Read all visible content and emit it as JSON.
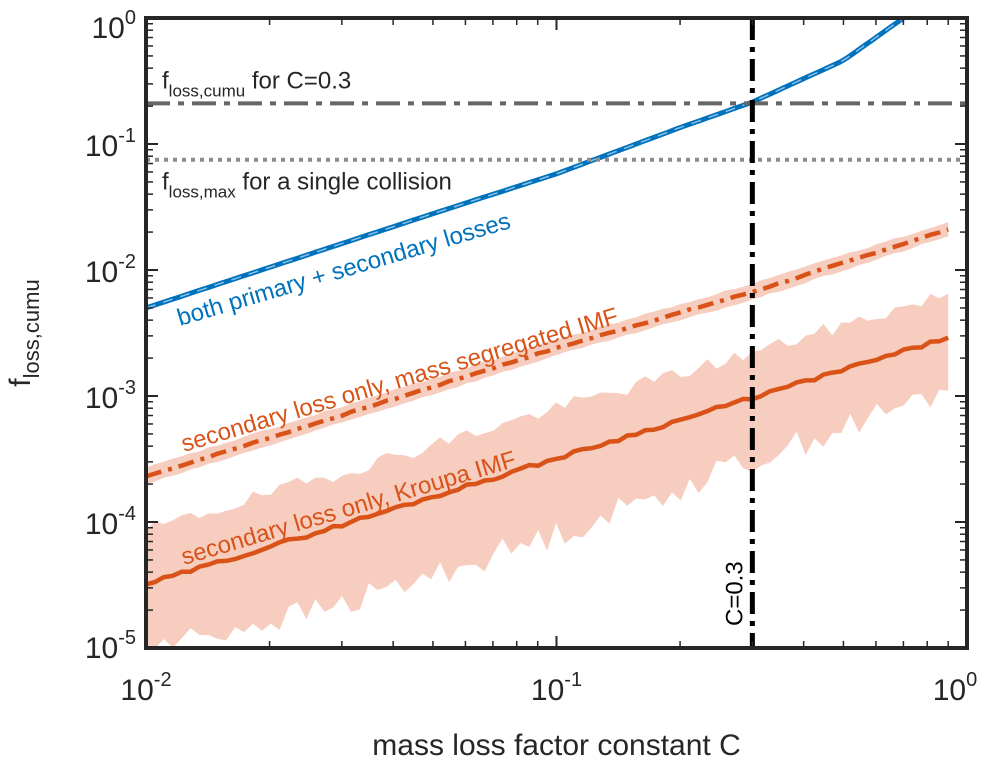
{
  "chart_data": {
    "type": "line",
    "xlabel": "mass loss factor constant C",
    "ylabel": {
      "base": "f",
      "sub": "loss,cumu"
    },
    "xscale": "log",
    "yscale": "log",
    "xlim": [
      0.01,
      1
    ],
    "ylim": [
      1e-05,
      1
    ],
    "x_ticks": [
      {
        "base": "10",
        "exp": "-2"
      },
      {
        "base": "10",
        "exp": "-1"
      },
      {
        "base": "10",
        "exp": "0"
      }
    ],
    "y_ticks": [
      {
        "base": "10",
        "exp": "-5"
      },
      {
        "base": "10",
        "exp": "-4"
      },
      {
        "base": "10",
        "exp": "-3"
      },
      {
        "base": "10",
        "exp": "-2"
      },
      {
        "base": "10",
        "exp": "-1"
      },
      {
        "base": "10",
        "exp": "0"
      }
    ],
    "grid": false,
    "colors": {
      "blue": "#0072BD",
      "orange": "#D95319",
      "band": "#F4C4B3",
      "dark_gray": "#666666",
      "light_gray": "#8C8C8C",
      "black": "#000000"
    },
    "series": [
      {
        "key": "blue",
        "label": "both primary + secondary losses",
        "style": "solid+dashed",
        "x": [
          0.01,
          0.02,
          0.05,
          0.1,
          0.2,
          0.3,
          0.5,
          0.7
        ],
        "y": [
          0.005,
          0.0105,
          0.028,
          0.058,
          0.135,
          0.215,
          0.46,
          1.0
        ]
      },
      {
        "key": "orange_segregated",
        "label": "secondary loss only, mass segregated IMF",
        "style": "dash-dot",
        "x": [
          0.01,
          0.1,
          0.3,
          0.9
        ],
        "y": [
          0.00023,
          0.0024,
          0.0067,
          0.021
        ],
        "band_upper": [
          0.00027,
          0.0028,
          0.0078,
          0.024
        ],
        "band_lower": [
          0.0002,
          0.0021,
          0.0058,
          0.0185
        ]
      },
      {
        "key": "orange_kroupa",
        "label": "secondary loss only, Kroupa IMF",
        "style": "solid",
        "x": [
          0.01,
          0.03,
          0.1,
          0.3,
          0.9
        ],
        "y": [
          3.2e-05,
          9.5e-05,
          0.00032,
          0.00097,
          0.0029
        ],
        "band_upper": [
          8.5e-05,
          0.00025,
          0.0008,
          0.0022,
          0.0065
        ],
        "band_lower": [
          1e-05,
          2.2e-05,
          8e-05,
          0.00031,
          0.0011
        ]
      }
    ],
    "hlines": [
      {
        "y": 0.21,
        "style": "dash-dot",
        "color": "dark_gray",
        "label": {
          "base": "f",
          "sub": "loss,cumu",
          "rest": " for C=0.3"
        }
      },
      {
        "y": 0.075,
        "style": "dotted",
        "color": "light_gray",
        "label": {
          "base": "f",
          "sub": "loss,max",
          "rest": " for a single collision"
        }
      }
    ],
    "vlines": [
      {
        "x": 0.3,
        "style": "dash-dot",
        "color": "black",
        "label": "C=0.3"
      }
    ]
  }
}
